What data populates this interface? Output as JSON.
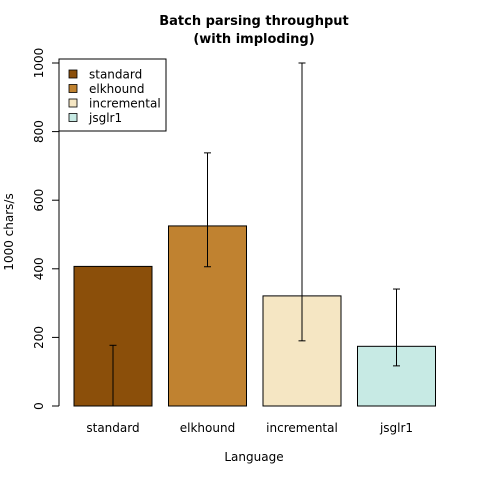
{
  "chart_data": {
    "type": "bar",
    "title": "Batch parsing throughput\n(with imploding)",
    "title_lines": [
      "Batch parsing throughput",
      "(with imploding)"
    ],
    "xlabel": "Language",
    "ylabel": "1000 chars/s",
    "categories": [
      "standard",
      "elkhound",
      "incremental",
      "jsglr1"
    ],
    "values": [
      407,
      525,
      321,
      174
    ],
    "error_low": [
      0,
      406,
      190,
      117
    ],
    "error_high": [
      177,
      738,
      1000,
      341
    ],
    "colors": [
      "#8b4f0a",
      "#c08230",
      "#f5e6c3",
      "#c7eae4"
    ],
    "ylim": [
      0,
      1000
    ],
    "yticks": [
      0,
      200,
      400,
      600,
      800,
      1000
    ],
    "grid": false,
    "legend": {
      "position": "top-left",
      "entries": [
        "standard",
        "elkhound",
        "incremental",
        "jsglr1"
      ]
    }
  }
}
